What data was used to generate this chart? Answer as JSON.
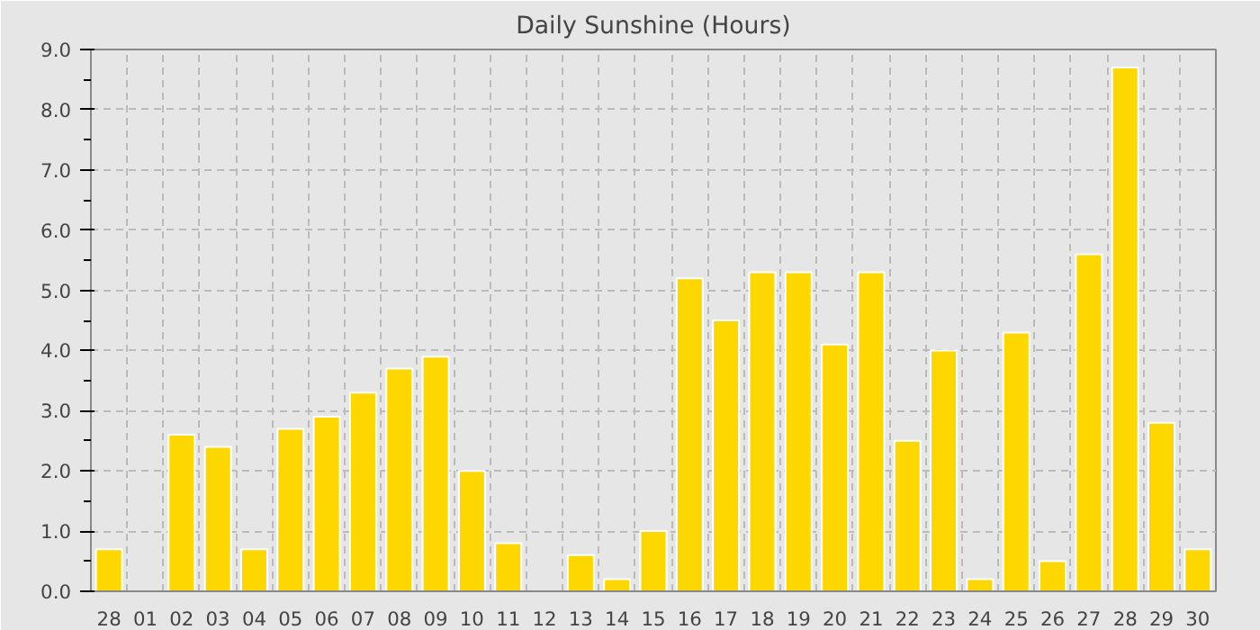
{
  "chart_data": {
    "type": "bar",
    "title": "Daily Sunshine (Hours)",
    "categories": [
      "28",
      "01",
      "02",
      "03",
      "04",
      "05",
      "06",
      "07",
      "08",
      "09",
      "10",
      "11",
      "12",
      "13",
      "14",
      "15",
      "16",
      "17",
      "18",
      "19",
      "20",
      "21",
      "22",
      "23",
      "24",
      "25",
      "26",
      "27",
      "28",
      "29",
      "30"
    ],
    "values": [
      0.7,
      null,
      2.6,
      2.4,
      0.7,
      2.7,
      2.9,
      3.3,
      3.7,
      3.9,
      2.0,
      0.8,
      null,
      0.6,
      0.2,
      1.0,
      5.2,
      4.5,
      5.3,
      5.3,
      4.1,
      5.3,
      2.5,
      4.0,
      0.2,
      4.3,
      0.5,
      5.6,
      8.7,
      2.8,
      0.7
    ],
    "color": "#ffd700",
    "ylim": [
      0,
      9
    ],
    "yticks": [
      {
        "value": 0,
        "label": "0.0"
      },
      {
        "value": 1,
        "label": "1.0"
      },
      {
        "value": 2,
        "label": "2.0"
      },
      {
        "value": 3,
        "label": "3.0"
      },
      {
        "value": 4,
        "label": "4.0"
      },
      {
        "value": 5,
        "label": "5.0"
      },
      {
        "value": 6,
        "label": "6.0"
      },
      {
        "value": 7,
        "label": "7.0"
      },
      {
        "value": 8,
        "label": "8.0"
      },
      {
        "value": 9,
        "label": "9.0"
      }
    ],
    "grid": true
  }
}
